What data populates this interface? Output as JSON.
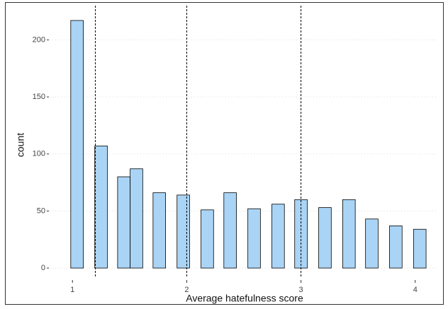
{
  "chart_data": {
    "type": "bar",
    "x_label": "Average hatefulness score",
    "y_label": "count",
    "x": [
      1.04,
      1.25,
      1.45,
      1.56,
      1.76,
      1.97,
      2.18,
      2.38,
      2.59,
      2.8,
      3.0,
      3.21,
      3.42,
      3.62,
      3.83,
      4.04
    ],
    "values": [
      217,
      107,
      80,
      87,
      66,
      64,
      51,
      66,
      52,
      56,
      60,
      53,
      60,
      43,
      37,
      34
    ],
    "bar_width": 0.11,
    "color": "#aad4f5",
    "vlines": [
      1.2,
      2,
      3
    ],
    "xlim": [
      0.8,
      4.2
    ],
    "xticks": [
      1,
      2,
      3,
      4
    ],
    "ylim": [
      -8,
      230
    ],
    "yticks": [
      0,
      50,
      100,
      150,
      200
    ],
    "grid": true
  }
}
